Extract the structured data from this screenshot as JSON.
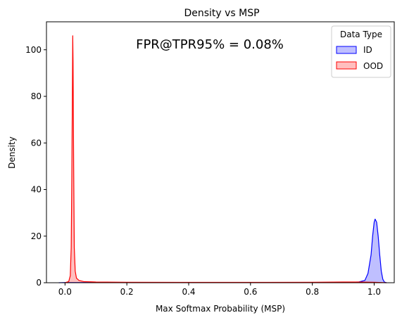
{
  "chart_data": {
    "type": "area",
    "title": "Density vs MSP",
    "xlabel": "Max Softmax Probability (MSP)",
    "ylabel": "Density",
    "xlim": [
      -0.06,
      1.065
    ],
    "ylim": [
      0,
      112
    ],
    "x_ticks": [
      0.0,
      0.2,
      0.4,
      0.6,
      0.8,
      1.0
    ],
    "x_tick_labels": [
      "0.0",
      "0.2",
      "0.4",
      "0.6",
      "0.8",
      "1.0"
    ],
    "y_ticks": [
      0,
      20,
      40,
      60,
      80,
      100
    ],
    "y_tick_labels": [
      "0",
      "20",
      "40",
      "60",
      "80",
      "100"
    ],
    "annotation": "FPR@TPR95% = 0.08%",
    "legend": {
      "title": "Data Type",
      "position": "top-right"
    },
    "series": [
      {
        "name": "ID",
        "line_color": "#0000ff",
        "fill_color": "#0000ff",
        "points": [
          [
            -0.02,
            0
          ],
          [
            0.0,
            0.1
          ],
          [
            0.2,
            0.05
          ],
          [
            0.4,
            0.05
          ],
          [
            0.6,
            0.05
          ],
          [
            0.8,
            0.05
          ],
          [
            0.9,
            0.1
          ],
          [
            0.95,
            0.3
          ],
          [
            0.97,
            1.0
          ],
          [
            0.98,
            4.0
          ],
          [
            0.99,
            12.0
          ],
          [
            0.995,
            20.0
          ],
          [
            1.0,
            26.0
          ],
          [
            1.003,
            27.3
          ],
          [
            1.008,
            26.0
          ],
          [
            1.013,
            20.0
          ],
          [
            1.018,
            12.0
          ],
          [
            1.023,
            5.0
          ],
          [
            1.028,
            1.5
          ],
          [
            1.033,
            0.3
          ],
          [
            1.04,
            0
          ]
        ]
      },
      {
        "name": "OOD",
        "line_color": "#ff0000",
        "fill_color": "#ff0000",
        "points": [
          [
            0.0,
            0
          ],
          [
            0.012,
            0.5
          ],
          [
            0.017,
            3.0
          ],
          [
            0.02,
            15.0
          ],
          [
            0.022,
            45.0
          ],
          [
            0.024,
            85.0
          ],
          [
            0.025,
            106.0
          ],
          [
            0.026,
            95.0
          ],
          [
            0.028,
            50.0
          ],
          [
            0.03,
            15.0
          ],
          [
            0.033,
            5.0
          ],
          [
            0.037,
            2.0
          ],
          [
            0.045,
            1.0
          ],
          [
            0.06,
            0.5
          ],
          [
            0.1,
            0.3
          ],
          [
            0.2,
            0.2
          ],
          [
            0.4,
            0.15
          ],
          [
            0.6,
            0.15
          ],
          [
            0.8,
            0.2
          ],
          [
            0.9,
            0.3
          ],
          [
            0.95,
            0.3
          ],
          [
            1.0,
            0.2
          ],
          [
            1.04,
            0
          ]
        ]
      }
    ]
  }
}
